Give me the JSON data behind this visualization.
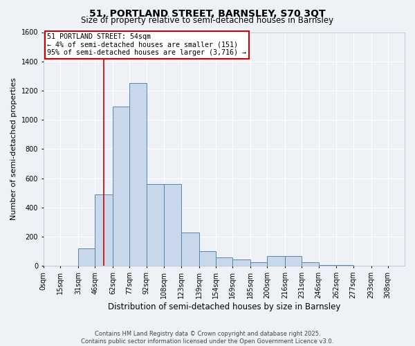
{
  "title": "51, PORTLAND STREET, BARNSLEY, S70 3QT",
  "subtitle": "Size of property relative to semi-detached houses in Barnsley",
  "xlabel": "Distribution of semi-detached houses by size in Barnsley",
  "ylabel": "Number of semi-detached properties",
  "bin_labels": [
    "0sqm",
    "15sqm",
    "31sqm",
    "46sqm",
    "62sqm",
    "77sqm",
    "92sqm",
    "108sqm",
    "123sqm",
    "139sqm",
    "154sqm",
    "169sqm",
    "185sqm",
    "200sqm",
    "216sqm",
    "231sqm",
    "246sqm",
    "262sqm",
    "277sqm",
    "293sqm",
    "308sqm"
  ],
  "bin_edges": [
    0,
    15,
    31,
    46,
    62,
    77,
    92,
    108,
    123,
    139,
    154,
    169,
    185,
    200,
    216,
    231,
    246,
    262,
    277,
    293,
    308,
    323
  ],
  "bar_values": [
    3,
    3,
    120,
    490,
    1090,
    1250,
    560,
    560,
    230,
    100,
    60,
    45,
    25,
    70,
    70,
    25,
    5,
    5,
    3,
    3,
    3
  ],
  "bar_color": "#c8d8ea",
  "bar_edge_color": "#5585b0",
  "ylim": [
    0,
    1600
  ],
  "yticks": [
    0,
    200,
    400,
    600,
    800,
    1000,
    1200,
    1400,
    1600
  ],
  "property_size": 54,
  "annotation_title": "51 PORTLAND STREET: 54sqm",
  "annotation_line1": "← 4% of semi-detached houses are smaller (151)",
  "annotation_line2": "95% of semi-detached houses are larger (3,716) →",
  "annotation_box_facecolor": "#ffffff",
  "annotation_box_edgecolor": "#cc0000",
  "vline_color": "#cc0000",
  "footer_line1": "Contains HM Land Registry data © Crown copyright and database right 2025.",
  "footer_line2": "Contains public sector information licensed under the Open Government Licence v3.0.",
  "bg_color": "#eef2f7",
  "plot_bg_color": "#eef2f7",
  "grid_color": "#ffffff",
  "title_fontsize": 10,
  "subtitle_fontsize": 8.5,
  "ylabel_fontsize": 8,
  "xlabel_fontsize": 8.5,
  "tick_fontsize": 7,
  "footer_fontsize": 6
}
